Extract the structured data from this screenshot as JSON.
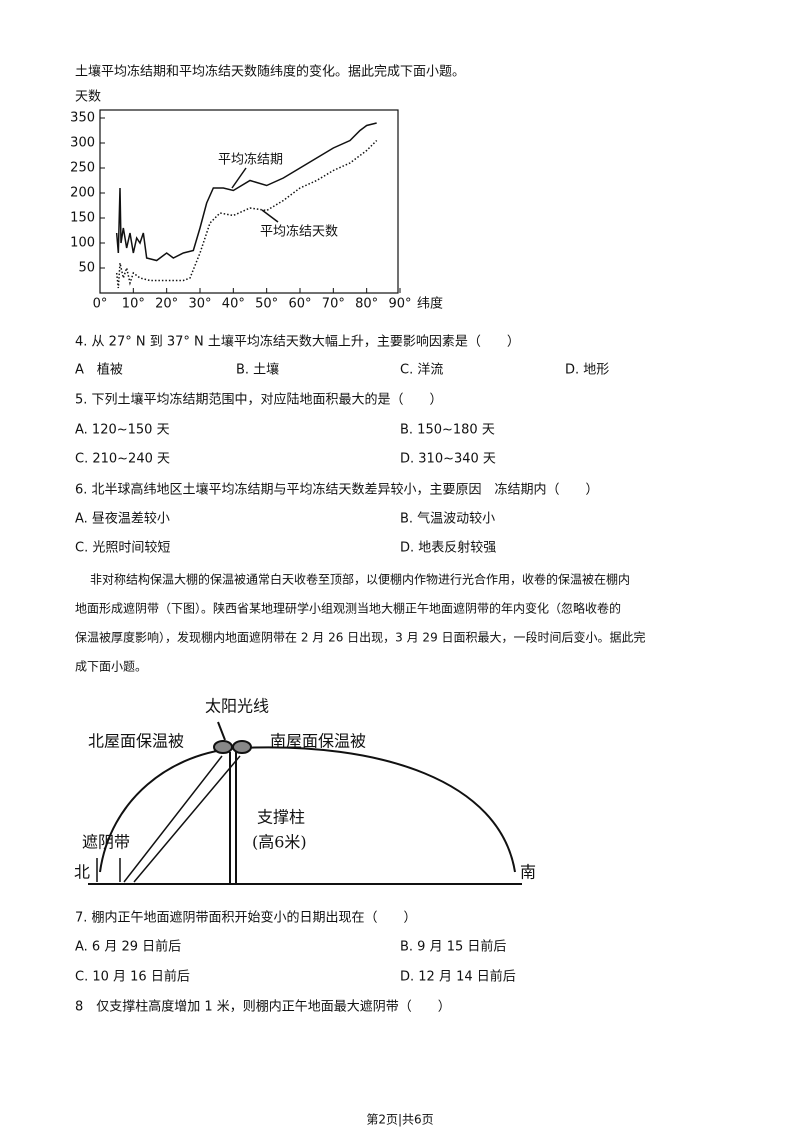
{
  "intro": "土壤平均冻结期和平均冻结天数随纬度的变化。据此完成下面小题。",
  "figure1": {
    "type": "line",
    "y_label": "天数",
    "x_label": "纬度",
    "xlim": [
      0,
      90
    ],
    "ylim": [
      0,
      366
    ],
    "xticks": [
      {
        "value": 0,
        "label": "0°"
      },
      {
        "value": 10,
        "label": "10°"
      },
      {
        "value": 20,
        "label": "20°"
      },
      {
        "value": 30,
        "label": "30°"
      },
      {
        "value": 40,
        "label": "40°"
      },
      {
        "value": 50,
        "label": "50°"
      },
      {
        "value": 60,
        "label": "60°"
      },
      {
        "value": 70,
        "label": "70°"
      },
      {
        "value": 80,
        "label": "80°"
      },
      {
        "value": 90,
        "label": "90°"
      }
    ],
    "yticks": [
      50,
      100,
      150,
      200,
      250,
      300,
      350
    ],
    "series": [
      {
        "name": "平均冻结期",
        "color": "#111111",
        "style": "solid",
        "x": [
          5,
          5.5,
          6,
          6.3,
          7,
          8,
          9,
          10,
          11,
          12,
          13,
          14,
          17,
          20,
          22,
          25,
          28,
          30,
          32,
          34,
          37,
          40,
          45,
          50,
          55,
          60,
          65,
          70,
          75,
          78,
          80,
          83
        ],
        "values": [
          120,
          80,
          210,
          100,
          130,
          90,
          120,
          80,
          110,
          100,
          120,
          70,
          65,
          80,
          70,
          80,
          85,
          130,
          180,
          210,
          210,
          205,
          225,
          215,
          230,
          250,
          270,
          290,
          305,
          325,
          335,
          340
        ]
      },
      {
        "name": "平均冻结天数",
        "color": "#111111",
        "style": "dotted",
        "x": [
          5,
          5.5,
          6,
          7,
          8,
          9,
          10,
          12,
          15,
          20,
          25,
          27,
          30,
          33,
          36,
          40,
          45,
          50,
          55,
          60,
          65,
          70,
          75,
          80,
          83
        ],
        "values": [
          40,
          10,
          60,
          30,
          50,
          20,
          40,
          30,
          25,
          25,
          25,
          30,
          80,
          140,
          160,
          155,
          170,
          165,
          185,
          210,
          225,
          245,
          260,
          285,
          305
        ]
      }
    ]
  },
  "questions": [
    {
      "stem": "4. 从 27° N 到 37° N 土壤平均冻结天数大幅上升，主要影响因素是（　　）",
      "options": [
        "A　植被",
        "B. 土壤",
        "C. 洋流",
        "D. 地形"
      ]
    },
    {
      "stem": "5. 下列土壤平均冻结期范围中，对应陆地面积最大的是（　　）",
      "options": [
        "A. 120~150 天",
        "B. 150~180 天",
        "C. 210~240 天",
        "D. 310~340 天"
      ]
    },
    {
      "stem": "6. 北半球高纬地区土壤平均冻结期与平均冻结天数差异较小，主要原因　冻结期内（　　）",
      "options": [
        "A. 昼夜温差较小",
        "B. 气温波动较小",
        "C. 光照时间较短",
        "D. 地表反射较强"
      ]
    }
  ],
  "paragraph": [
    "非对称结构保温大棚的保温被通常白天收卷至顶部，以便棚内作物进行光合作用，收卷的保温被在棚内",
    "地面形成遮阴带（下图）。陕西省某地理研学小组观测当地大棚正午地面遮阴带的年内变化（忽略收卷的",
    "保温被厚度影响），发现棚内地面遮阴带在 2 月 26 日出现，3 月 29 日面积最大，一段时间后变小。据此完",
    "成下面小题。"
  ],
  "figure2": {
    "sun": "太阳光线",
    "north_cover": "北屋面保温被",
    "south_cover": "南屋面保温被",
    "pillar": "支撑柱",
    "pillar_height": "(高6米)",
    "shade": "遮阴带",
    "north": "北",
    "south": "南"
  },
  "questions2": [
    {
      "stem": "7. 棚内正午地面遮阴带面积开始变小的日期出现在（　　）",
      "options": [
        "A. 6 月 29 日前后",
        "B. 9 月 15 日前后",
        "C. 10 月 16 日前后",
        "D. 12 月 14 日前后"
      ]
    },
    {
      "stem": "8　仅支撑柱高度增加 1 米，则棚内正午地面最大遮阴带（　　）"
    }
  ],
  "footer": "第2页|共6页"
}
